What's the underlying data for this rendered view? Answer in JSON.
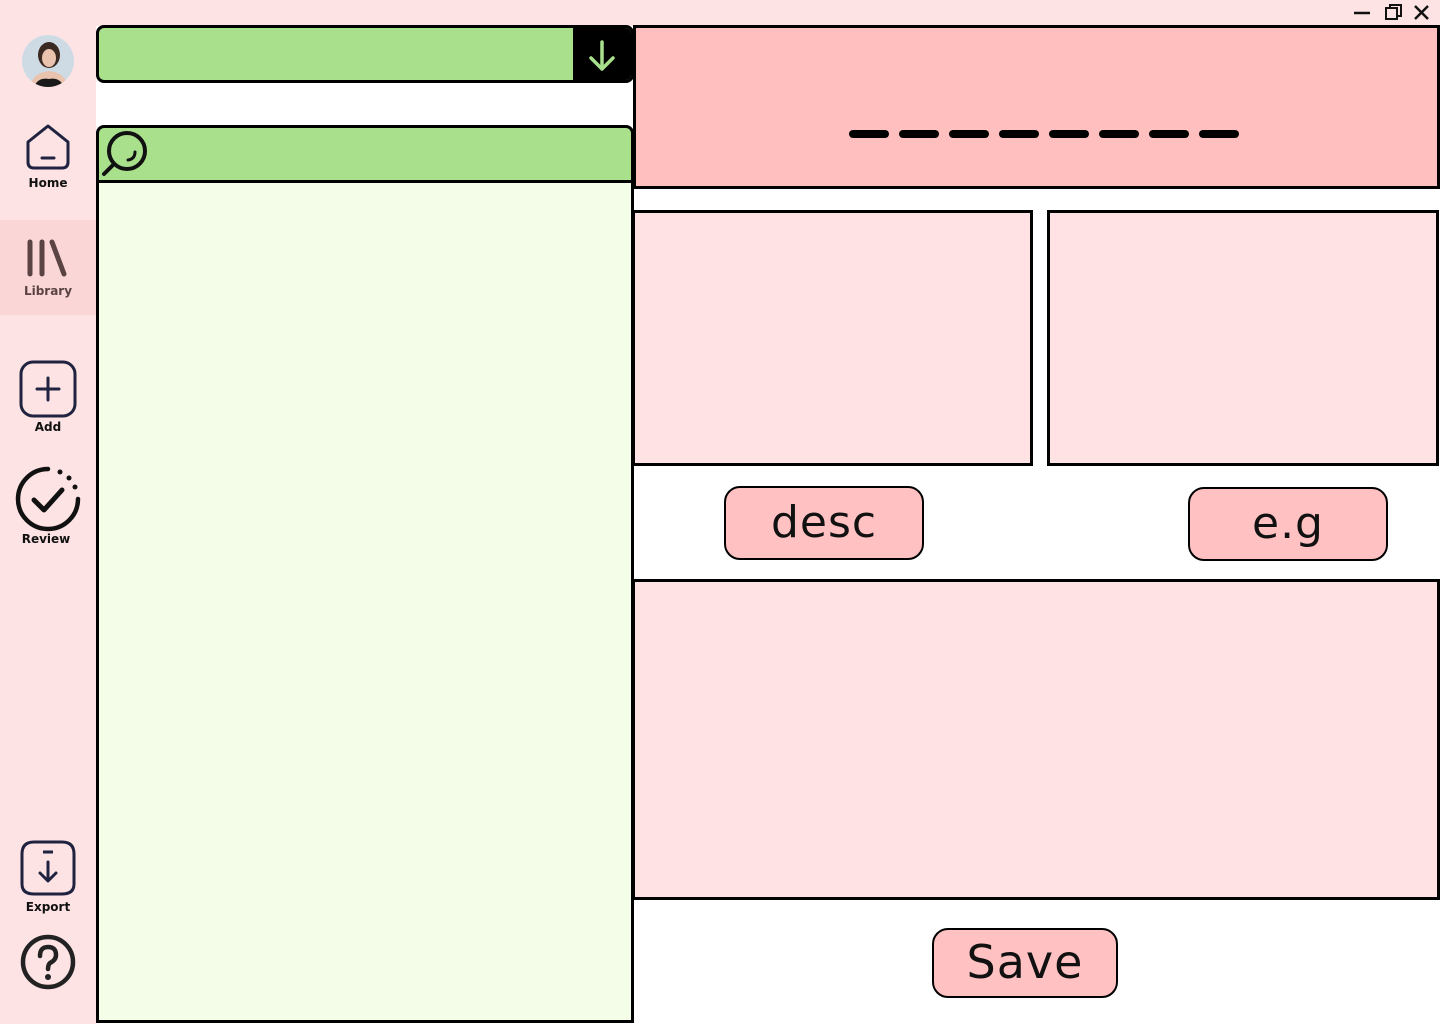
{
  "sidebar": {
    "items": [
      {
        "label": "Home",
        "icon": "home-icon"
      },
      {
        "label": "Library",
        "icon": "library-icon"
      },
      {
        "label": "Add",
        "icon": "add-icon"
      },
      {
        "label": "Review",
        "icon": "review-icon"
      },
      {
        "label": "Export",
        "icon": "export-icon"
      }
    ],
    "active": "Library",
    "help_icon": "help-icon",
    "avatar_icon": "avatar"
  },
  "window_controls": [
    "minimize-icon",
    "restore-icon",
    "close-icon"
  ],
  "deck_selector": {
    "value": "",
    "icon": "chevron-down-icon"
  },
  "search": {
    "value": "",
    "placeholder": "",
    "icon": "search-icon"
  },
  "card": {
    "word_hidden": "────────"
  },
  "buttons": {
    "desc_label": "desc",
    "eg_label": "e.g",
    "save_label": "Save"
  },
  "colors": {
    "sidebar_bg": "#fde3e4",
    "accent_green": "#a8e08c",
    "list_bg": "#f3fde8",
    "word_box": "#ffbfbf",
    "panel_pink": "#ffe3e4",
    "button_pink": "#ffc1c1",
    "icon_navy": "#1f2340"
  }
}
